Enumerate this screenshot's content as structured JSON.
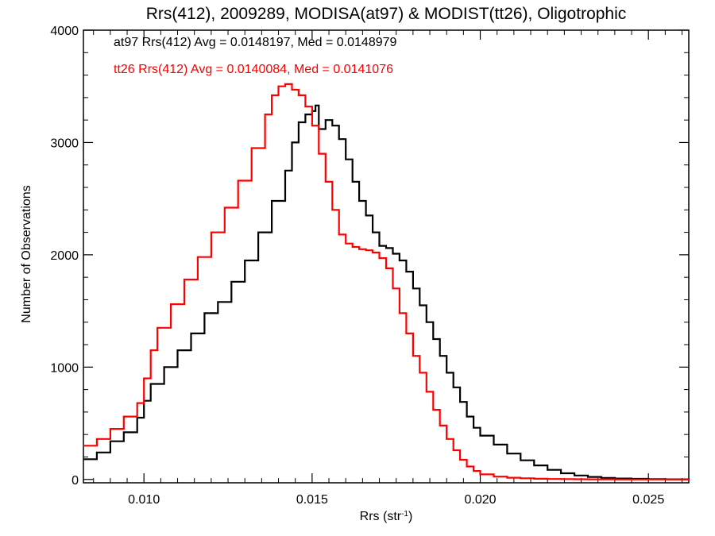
{
  "chart_data": {
    "type": "line",
    "title": "Rrs(412), 2009289, MODISA(at97) & MODIST(tt26), Oligotrophic",
    "xlabel": "Rrs (str",
    "xlabel_sup": "-1",
    "xlabel_close": ")",
    "ylabel": "Number of Observations",
    "xlim": [
      0.0082,
      0.0262
    ],
    "ylim": [
      -30,
      4000
    ],
    "xticks": [
      0.01,
      0.015,
      0.02,
      0.025
    ],
    "xtick_labels": [
      "0.010",
      "0.015",
      "0.020",
      "0.025"
    ],
    "yticks": [
      0,
      1000,
      2000,
      3000,
      4000
    ],
    "ytick_labels": [
      "0",
      "1000",
      "2000",
      "3000",
      "4000"
    ],
    "grid": false,
    "legend_position": "top-left",
    "step": true,
    "series": [
      {
        "name": "at97",
        "label": "at97 Rrs(412) Avg = 0.0148197, Med = 0.0148979",
        "color": "#000000",
        "x": [
          0.0082,
          0.0086,
          0.009,
          0.0094,
          0.0098,
          0.01,
          0.0102,
          0.0106,
          0.011,
          0.0114,
          0.0118,
          0.0122,
          0.0126,
          0.013,
          0.0134,
          0.0138,
          0.0142,
          0.0144,
          0.0146,
          0.0148,
          0.015,
          0.0151,
          0.0152,
          0.0154,
          0.0156,
          0.0158,
          0.016,
          0.0162,
          0.0164,
          0.0166,
          0.0168,
          0.017,
          0.0172,
          0.0174,
          0.0176,
          0.0178,
          0.018,
          0.0182,
          0.0184,
          0.0186,
          0.0188,
          0.019,
          0.0192,
          0.0194,
          0.0196,
          0.0198,
          0.02,
          0.0204,
          0.0208,
          0.0212,
          0.0216,
          0.022,
          0.0224,
          0.0228,
          0.0232,
          0.0236,
          0.024,
          0.0245,
          0.025,
          0.0255,
          0.0262
        ],
        "y": [
          180,
          240,
          340,
          420,
          550,
          700,
          850,
          1000,
          1150,
          1300,
          1480,
          1580,
          1760,
          1950,
          2200,
          2480,
          2750,
          3000,
          3180,
          3250,
          3280,
          3330,
          3120,
          3200,
          3150,
          3030,
          2850,
          2650,
          2480,
          2350,
          2200,
          2080,
          2060,
          2010,
          1950,
          1850,
          1700,
          1550,
          1400,
          1250,
          1100,
          950,
          820,
          690,
          560,
          460,
          390,
          310,
          230,
          170,
          125,
          85,
          55,
          35,
          22,
          14,
          8,
          5,
          3,
          1,
          0
        ]
      },
      {
        "name": "tt26",
        "label": "tt26 Rrs(412) Avg = 0.0140084, Med = 0.0141076",
        "color": "#ff0000",
        "x": [
          0.0082,
          0.0086,
          0.009,
          0.0094,
          0.0098,
          0.01,
          0.0102,
          0.0104,
          0.0108,
          0.0112,
          0.0116,
          0.012,
          0.0124,
          0.0128,
          0.0132,
          0.0136,
          0.0138,
          0.014,
          0.0142,
          0.0144,
          0.0146,
          0.0148,
          0.015,
          0.0152,
          0.0154,
          0.0156,
          0.0158,
          0.016,
          0.0162,
          0.0164,
          0.0166,
          0.0168,
          0.017,
          0.0172,
          0.0174,
          0.0176,
          0.0178,
          0.018,
          0.0182,
          0.0184,
          0.0186,
          0.0188,
          0.019,
          0.0192,
          0.0194,
          0.0196,
          0.0198,
          0.02,
          0.0204,
          0.0208,
          0.0212,
          0.0216,
          0.022,
          0.0224,
          0.0228,
          0.0232,
          0.0236,
          0.024,
          0.025,
          0.0262
        ],
        "y": [
          300,
          360,
          450,
          560,
          680,
          900,
          1150,
          1350,
          1560,
          1780,
          1980,
          2200,
          2420,
          2660,
          2950,
          3250,
          3420,
          3500,
          3520,
          3470,
          3420,
          3320,
          3150,
          2900,
          2650,
          2400,
          2180,
          2100,
          2070,
          2050,
          2040,
          2020,
          1970,
          1880,
          1700,
          1480,
          1300,
          1100,
          950,
          780,
          620,
          480,
          360,
          260,
          175,
          115,
          75,
          45,
          25,
          15,
          10,
          6,
          4,
          3,
          2,
          1,
          1,
          0,
          0,
          0
        ]
      }
    ]
  }
}
